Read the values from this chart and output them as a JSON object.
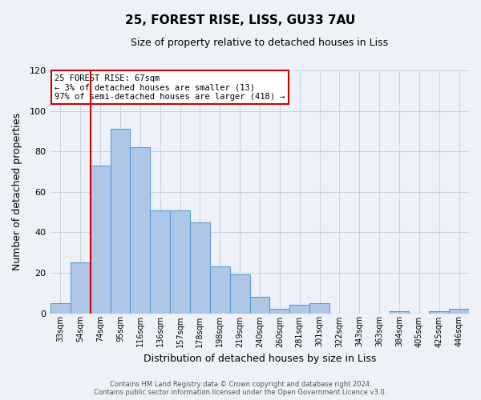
{
  "title": "25, FOREST RISE, LISS, GU33 7AU",
  "subtitle": "Size of property relative to detached houses in Liss",
  "xlabel": "Distribution of detached houses by size in Liss",
  "ylabel": "Number of detached properties",
  "bar_labels": [
    "33sqm",
    "54sqm",
    "74sqm",
    "95sqm",
    "116sqm",
    "136sqm",
    "157sqm",
    "178sqm",
    "198sqm",
    "219sqm",
    "240sqm",
    "260sqm",
    "281sqm",
    "301sqm",
    "322sqm",
    "343sqm",
    "363sqm",
    "384sqm",
    "405sqm",
    "425sqm",
    "446sqm"
  ],
  "bar_values": [
    5,
    25,
    73,
    91,
    82,
    51,
    51,
    45,
    23,
    19,
    8,
    2,
    4,
    5,
    0,
    0,
    0,
    1,
    0,
    1,
    2
  ],
  "bar_color": "#aec6e8",
  "bar_edge_color": "#5b9bd5",
  "ylim": [
    0,
    120
  ],
  "yticks": [
    0,
    20,
    40,
    60,
    80,
    100,
    120
  ],
  "vline_color": "#cc0000",
  "vline_x": 1.5,
  "annotation_title": "25 FOREST RISE: 67sqm",
  "annotation_line1": "← 3% of detached houses are smaller (13)",
  "annotation_line2": "97% of semi-detached houses are larger (418) →",
  "annotation_box_color": "#ffffff",
  "annotation_box_edge": "#cc0000",
  "footer1": "Contains HM Land Registry data © Crown copyright and database right 2024.",
  "footer2": "Contains public sector information licensed under the Open Government Licence v3.0.",
  "bg_color": "#eef2f8",
  "plot_bg_color": "#eef2f8",
  "grid_color": "#c8d4e8"
}
